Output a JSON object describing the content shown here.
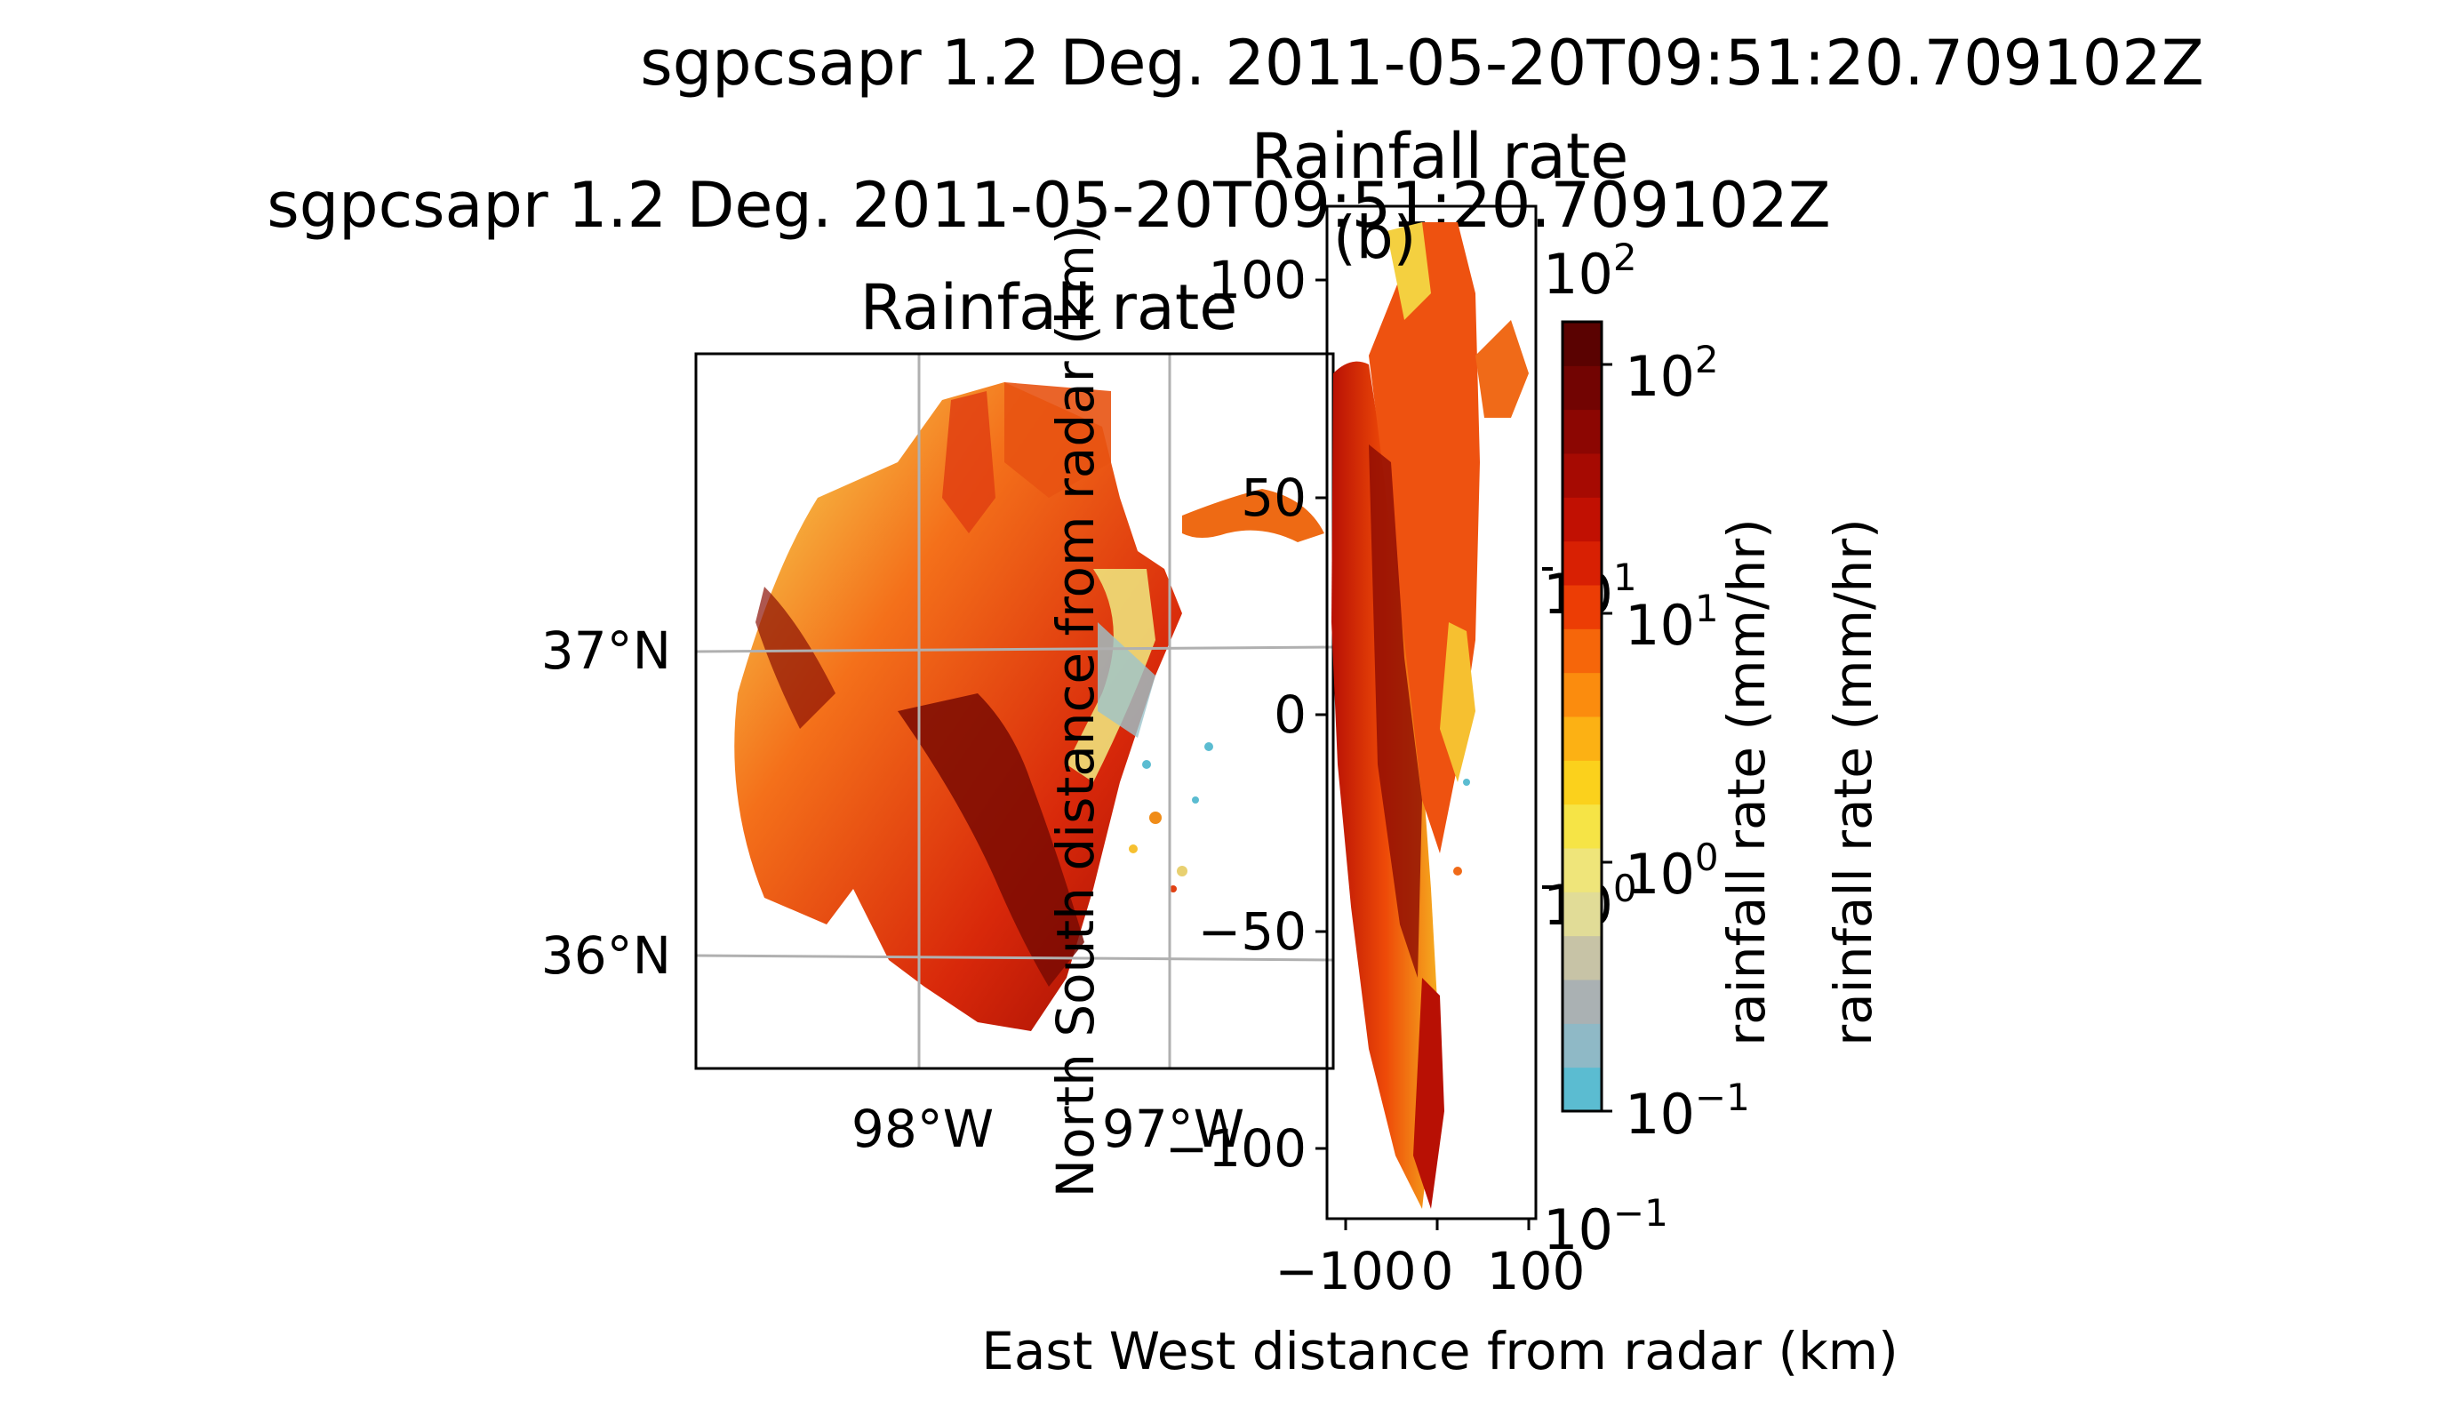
{
  "map_panel": {
    "title_line1": "sgpcsapr 1.2 Deg. 2011-05-20T09:51:20.709102Z",
    "title_line2": "Rainfall rate",
    "lat_ticks": [
      "37°N",
      "36°N"
    ],
    "lon_ticks": [
      "98°W",
      "97°W"
    ]
  },
  "xy_panel": {
    "title_line1": "sgpcsapr 1.2 Deg. 2011-05-20T09:51:20.709102Z",
    "title_line2": "Rainfall rate",
    "panel_label": "(b)",
    "xlabel": "East West distance from radar (km)",
    "ylabel": "North South distance from radar (km)",
    "x_ticks": [
      "−100",
      "0",
      "100"
    ],
    "y_ticks": [
      "100",
      "50",
      "0",
      "−50",
      "−100"
    ]
  },
  "colorbar": {
    "label": "rainfall rate (mm/hr)",
    "ticks": [
      {
        "base": "10",
        "exp": "2"
      },
      {
        "base": "10",
        "exp": "1"
      },
      {
        "base": "10",
        "exp": "0"
      },
      {
        "base": "10",
        "exp": "−1"
      }
    ],
    "stray_label": "rainfall rate (mm/hr)",
    "stray_ticks": [
      {
        "base": "10",
        "exp": "2"
      },
      {
        "base": "10",
        "exp": "1"
      },
      {
        "base": "10",
        "exp": "0"
      },
      {
        "base": "10",
        "exp": "−1"
      }
    ],
    "colors": [
      "#5bbcd1",
      "#8fb9c6",
      "#aab1b3",
      "#c7c3a6",
      "#e1dc97",
      "#efe57a",
      "#f6e446",
      "#fbd11c",
      "#fcb114",
      "#fb8c0e",
      "#f6660a",
      "#ec3d05",
      "#d82003",
      "#c11002",
      "#a60a02",
      "#8c0602",
      "#720402",
      "#5a0201"
    ],
    "range": [
      0.1,
      150
    ],
    "scale": "log"
  },
  "chart_data": [
    {
      "type": "heatmap",
      "title": "sgpcsapr 1.2 Deg. 2011-05-20T09:51:20.709102Z Rainfall rate",
      "projection": "lat/lon map",
      "variable": "rainfall rate (mm/hr)",
      "y_ticks": [
        "37°N",
        "36°N"
      ],
      "x_ticks": [
        "98°W",
        "97°W"
      ],
      "color_scale": "log",
      "color_range": [
        0.1,
        150
      ]
    },
    {
      "type": "heatmap",
      "title": "sgpcsapr 1.2 Deg. 2011-05-20T09:51:20.709102Z Rainfall rate",
      "xlabel": "East West distance from radar (km)",
      "ylabel": "North South distance from radar (km)",
      "x_ticks": [
        -100,
        0,
        100
      ],
      "y_ticks": [
        100,
        50,
        0,
        -50,
        -100
      ],
      "xlim": [
        -115,
        115
      ],
      "ylim": [
        -115,
        115
      ],
      "color_scale": "log",
      "color_range": [
        0.1,
        150
      ]
    }
  ]
}
